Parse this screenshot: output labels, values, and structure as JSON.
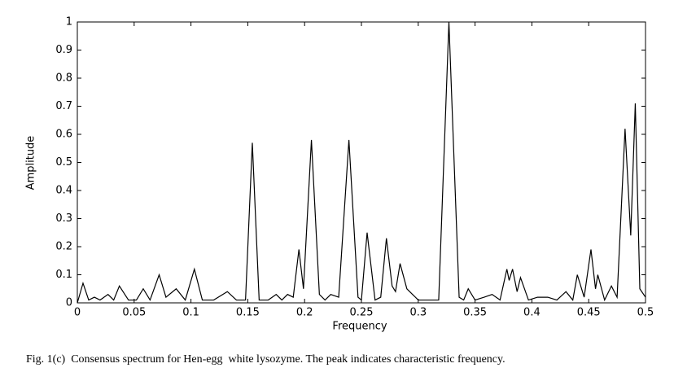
{
  "chart_data": {
    "type": "line",
    "xlabel": "Frequency",
    "ylabel": "Amplitude",
    "caption": "Fig. 1(c)  Consensus spectrum for Hen-egg  white lysozyme. The peak indicates characteristic frequency.",
    "color": "#000000",
    "x": [
      0,
      0.005,
      0.01,
      0.015,
      0.02,
      0.027,
      0.032,
      0.037,
      0.045,
      0.052,
      0.058,
      0.064,
      0.072,
      0.078,
      0.087,
      0.095,
      0.103,
      0.11,
      0.12,
      0.132,
      0.14,
      0.148,
      0.154,
      0.16,
      0.168,
      0.175,
      0.18,
      0.185,
      0.19,
      0.195,
      0.199,
      0.206,
      0.213,
      0.218,
      0.223,
      0.23,
      0.239,
      0.247,
      0.25,
      0.255,
      0.262,
      0.267,
      0.272,
      0.277,
      0.28,
      0.284,
      0.29,
      0.295,
      0.3,
      0.31,
      0.318,
      0.327,
      0.336,
      0.34,
      0.344,
      0.35,
      0.358,
      0.365,
      0.372,
      0.378,
      0.38,
      0.383,
      0.387,
      0.39,
      0.397,
      0.405,
      0.414,
      0.422,
      0.43,
      0.436,
      0.44,
      0.446,
      0.452,
      0.456,
      0.458,
      0.464,
      0.47,
      0.475,
      0.482,
      0.487,
      0.491,
      0.495,
      0.5
    ],
    "values": [
      0,
      0.07,
      0.01,
      0.02,
      0.01,
      0.03,
      0.01,
      0.06,
      0.01,
      0.01,
      0.05,
      0.01,
      0.1,
      0.02,
      0.05,
      0.01,
      0.12,
      0.01,
      0.01,
      0.04,
      0.01,
      0.01,
      0.57,
      0.01,
      0.01,
      0.03,
      0.01,
      0.03,
      0.02,
      0.19,
      0.05,
      0.58,
      0.03,
      0.01,
      0.03,
      0.02,
      0.58,
      0.02,
      0.01,
      0.25,
      0.01,
      0.02,
      0.23,
      0.06,
      0.04,
      0.14,
      0.05,
      0.03,
      0.01,
      0.01,
      0.01,
      1.0,
      0.02,
      0.01,
      0.05,
      0.01,
      0.02,
      0.03,
      0.01,
      0.12,
      0.08,
      0.12,
      0.04,
      0.09,
      0.01,
      0.02,
      0.02,
      0.01,
      0.04,
      0.01,
      0.1,
      0.02,
      0.19,
      0.05,
      0.1,
      0.01,
      0.06,
      0.02,
      0.62,
      0.24,
      0.71,
      0.05,
      0.02
    ],
    "xlim": [
      0,
      0.5
    ],
    "xticks": [
      0,
      0.05,
      0.1,
      0.15,
      0.2,
      0.25,
      0.3,
      0.35,
      0.4,
      0.45,
      0.5
    ],
    "ylim": [
      0,
      1
    ],
    "yticks": [
      0,
      0.1,
      0.2,
      0.3,
      0.4,
      0.5,
      0.6,
      0.7,
      0.8,
      0.9,
      1
    ],
    "grid": false
  }
}
